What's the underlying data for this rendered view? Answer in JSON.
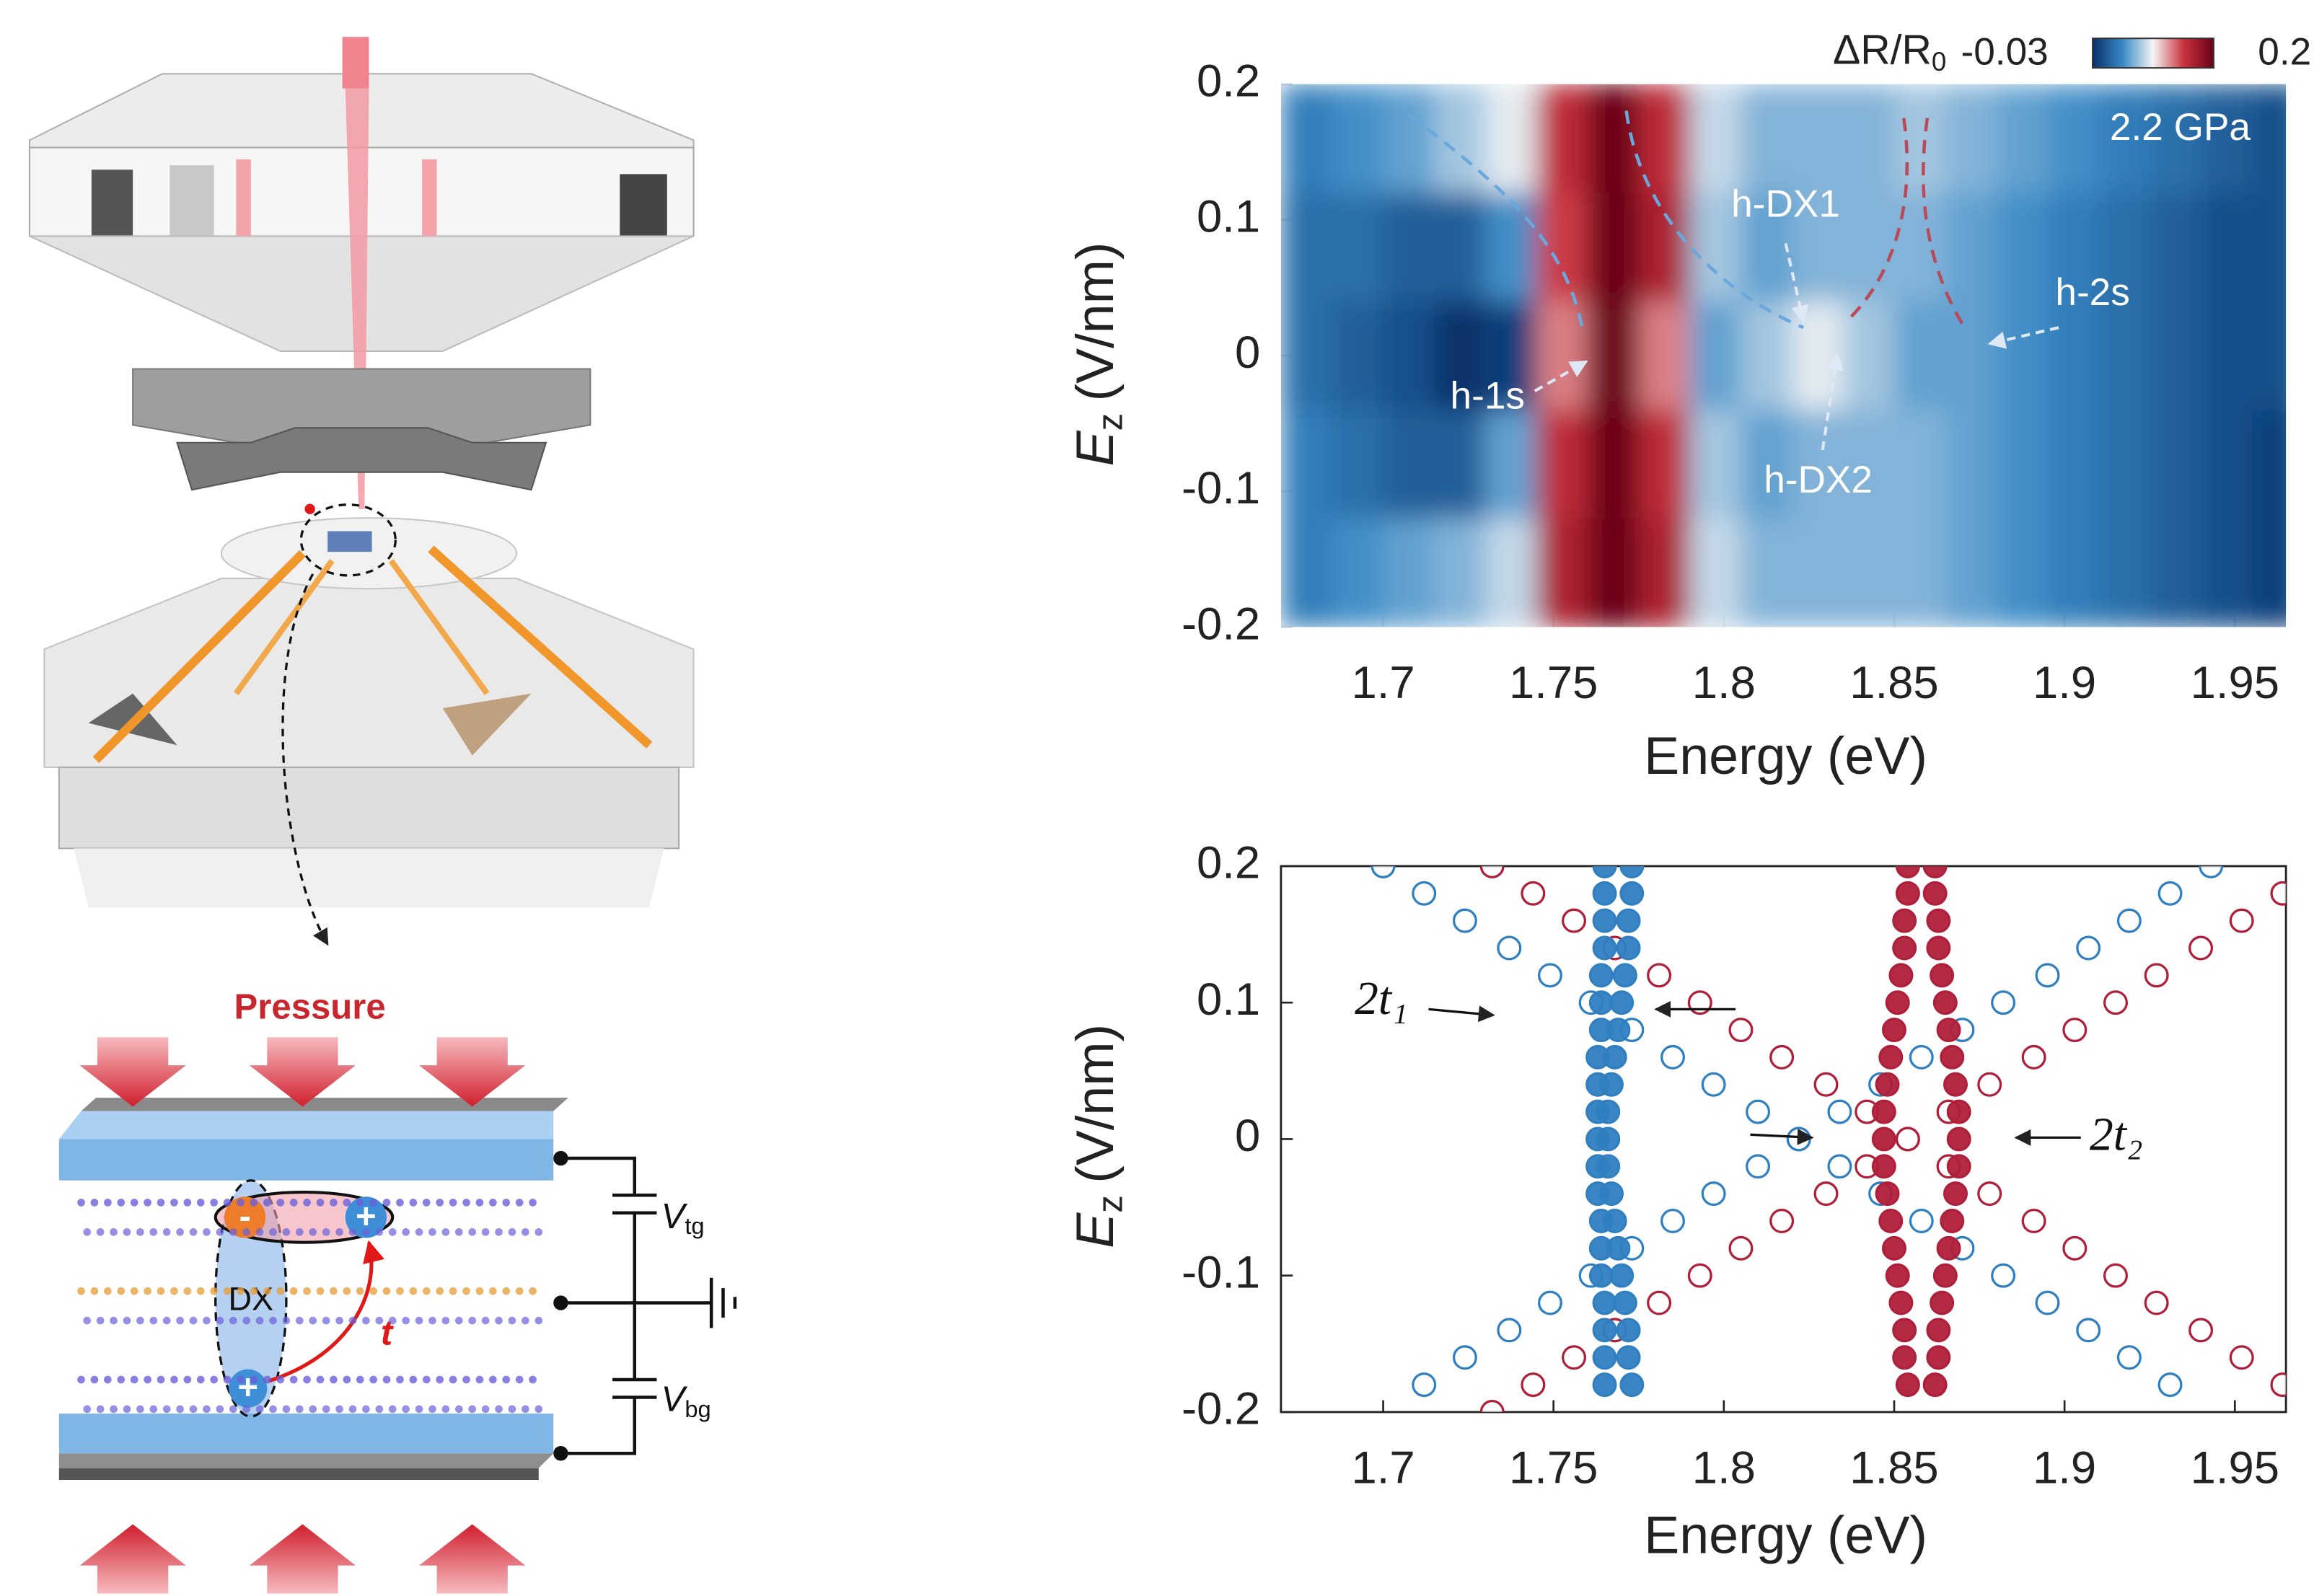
{
  "chart_data": [
    {
      "type": "heatmap",
      "xlabel": "Energy (eV)",
      "ylabel": "E",
      "ylabel_sub": "z",
      "ylabel_unit": "(V/nm)",
      "xlim": [
        1.67,
        1.965
      ],
      "ylim": [
        -0.2,
        0.2
      ],
      "xticks": [
        1.7,
        1.75,
        1.8,
        1.85,
        1.9,
        1.95
      ],
      "yticks": [
        -0.2,
        -0.1,
        0,
        0.1,
        0.2
      ],
      "colorbar_label": "ΔR/R",
      "colorbar_label_sub": "0",
      "clim": [
        -0.03,
        0.2
      ],
      "colorbar_ticks": [
        -0.03,
        0.2
      ],
      "colormap": [
        "#08306b",
        "#3a8ac6",
        "#f4f4f4",
        "#c9333c",
        "#6a0018"
      ],
      "annotations": [
        "2.2 GPa",
        "h-1s",
        "h-DX1",
        "h-DX2",
        "h-2s"
      ],
      "x_edges": [
        1.67,
        1.685,
        1.7,
        1.715,
        1.73,
        1.745,
        1.76,
        1.775,
        1.79,
        1.805,
        1.82,
        1.835,
        1.85,
        1.865,
        1.88,
        1.895,
        1.91,
        1.925,
        1.94,
        1.955,
        1.97
      ],
      "y_edges": [
        0.2,
        0.12,
        0.04,
        -0.04,
        -0.12,
        -0.2
      ],
      "z": [
        [
          0.02,
          0.03,
          0.04,
          0.06,
          0.08,
          0.15,
          0.2,
          0.15,
          0.07,
          0.05,
          0.05,
          0.05,
          0.06,
          0.05,
          0.04,
          0.03,
          0.02,
          0.01,
          0.0,
          -0.01
        ],
        [
          0.01,
          0.01,
          0.0,
          0.0,
          0.03,
          0.14,
          0.2,
          0.16,
          0.06,
          0.04,
          0.05,
          0.05,
          0.05,
          0.04,
          0.03,
          0.02,
          0.01,
          0.0,
          -0.01,
          -0.01
        ],
        [
          0.01,
          0.0,
          -0.01,
          -0.03,
          -0.02,
          0.12,
          0.2,
          0.12,
          0.04,
          0.06,
          0.08,
          0.06,
          0.04,
          0.04,
          0.03,
          0.02,
          0.01,
          0.0,
          -0.01,
          -0.01
        ],
        [
          0.02,
          0.01,
          0.0,
          0.0,
          0.04,
          0.15,
          0.2,
          0.15,
          0.06,
          0.04,
          0.05,
          0.05,
          0.05,
          0.04,
          0.03,
          0.02,
          0.01,
          0.0,
          -0.01,
          -0.02
        ],
        [
          0.02,
          0.03,
          0.04,
          0.05,
          0.07,
          0.16,
          0.2,
          0.16,
          0.07,
          0.05,
          0.05,
          0.05,
          0.05,
          0.04,
          0.03,
          0.02,
          0.01,
          0.0,
          -0.01,
          -0.02
        ]
      ]
    },
    {
      "type": "scatter",
      "xlabel": "Energy (eV)",
      "ylabel": "E",
      "ylabel_sub": "z",
      "ylabel_unit": "(V/nm)",
      "xlim": [
        1.67,
        1.965
      ],
      "ylim": [
        -0.2,
        0.2
      ],
      "xticks": [
        1.7,
        1.75,
        1.8,
        1.85,
        1.9,
        1.95
      ],
      "yticks": [
        -0.2,
        -0.1,
        0,
        0.1,
        0.2
      ],
      "annotations": [
        "2t₁",
        "2t₂"
      ],
      "series": [
        {
          "color": "#2f7fc1",
          "filled": false,
          "x": [
            1.7,
            1.712,
            1.724,
            1.737,
            1.749,
            1.761,
            1.773,
            1.785,
            1.797,
            1.81,
            1.822,
            1.834,
            1.846,
            1.858,
            1.87,
            1.882,
            1.895,
            1.907,
            1.919,
            1.931
          ],
          "y": [
            0.2,
            0.18,
            0.16,
            0.14,
            0.12,
            0.1,
            0.08,
            0.06,
            0.04,
            0.02,
            0,
            -0.02,
            -0.04,
            -0.06,
            -0.08,
            -0.1,
            -0.12,
            -0.14,
            -0.16,
            -0.18
          ]
        },
        {
          "color": "#2f7fc1",
          "filled": false,
          "x": [
            1.943,
            1.931,
            1.919,
            1.907,
            1.895,
            1.882,
            1.87,
            1.858,
            1.846,
            1.834,
            1.822,
            1.81,
            1.797,
            1.785,
            1.773,
            1.761,
            1.749,
            1.737,
            1.724,
            1.712
          ],
          "y": [
            0.2,
            0.18,
            0.16,
            0.14,
            0.12,
            0.1,
            0.08,
            0.06,
            0.04,
            0.02,
            0,
            -0.02,
            -0.04,
            -0.06,
            -0.08,
            -0.1,
            -0.12,
            -0.14,
            -0.16,
            -0.18
          ]
        },
        {
          "color": "#b01f3a",
          "filled": false,
          "x": [
            1.732,
            1.744,
            1.756,
            1.768,
            1.781,
            1.793,
            1.805,
            1.817,
            1.83,
            1.842,
            1.854,
            1.866,
            1.878,
            1.891,
            1.903,
            1.915,
            1.927,
            1.94,
            1.952,
            1.964
          ],
          "y": [
            0.2,
            0.18,
            0.16,
            0.14,
            0.12,
            0.1,
            0.08,
            0.06,
            0.04,
            0.02,
            0,
            -0.02,
            -0.04,
            -0.06,
            -0.08,
            -0.1,
            -0.12,
            -0.14,
            -0.16,
            -0.18
          ]
        },
        {
          "color": "#b01f3a",
          "filled": false,
          "x": [
            1.732,
            1.744,
            1.756,
            1.768,
            1.781,
            1.793,
            1.805,
            1.817,
            1.83,
            1.842,
            1.854,
            1.866,
            1.878,
            1.891,
            1.903,
            1.915,
            1.927,
            1.94,
            1.952,
            1.964
          ],
          "y": [
            -0.2,
            -0.18,
            -0.16,
            -0.14,
            -0.12,
            -0.1,
            -0.08,
            -0.06,
            -0.04,
            -0.02,
            0,
            0.02,
            0.04,
            0.06,
            0.08,
            0.1,
            0.12,
            0.14,
            0.16,
            0.18
          ]
        },
        {
          "color": "#2f7fc1",
          "filled": true,
          "x": [
            1.765,
            1.765,
            1.765,
            1.765,
            1.764,
            1.764,
            1.764,
            1.763,
            1.763,
            1.763,
            1.763,
            1.763,
            1.763,
            1.764,
            1.764,
            1.764,
            1.765,
            1.765,
            1.765,
            1.765
          ],
          "y": [
            0.2,
            0.18,
            0.16,
            0.14,
            0.12,
            0.1,
            0.08,
            0.06,
            0.04,
            0.02,
            0,
            -0.02,
            -0.04,
            -0.06,
            -0.08,
            -0.1,
            -0.12,
            -0.14,
            -0.16,
            -0.18
          ]
        },
        {
          "color": "#2f7fc1",
          "filled": true,
          "x": [
            1.773,
            1.773,
            1.772,
            1.772,
            1.771,
            1.77,
            1.769,
            1.768,
            1.767,
            1.766,
            1.766,
            1.766,
            1.767,
            1.768,
            1.769,
            1.77,
            1.771,
            1.772,
            1.772,
            1.773
          ],
          "y": [
            0.2,
            0.18,
            0.16,
            0.14,
            0.12,
            0.1,
            0.08,
            0.06,
            0.04,
            0.02,
            0,
            -0.02,
            -0.04,
            -0.06,
            -0.08,
            -0.1,
            -0.12,
            -0.14,
            -0.16,
            -0.18
          ]
        },
        {
          "color": "#b01f3a",
          "filled": true,
          "x": [
            1.854,
            1.854,
            1.853,
            1.853,
            1.852,
            1.851,
            1.85,
            1.849,
            1.848,
            1.847,
            1.847,
            1.847,
            1.848,
            1.849,
            1.85,
            1.851,
            1.852,
            1.853,
            1.853,
            1.854
          ],
          "y": [
            0.2,
            0.18,
            0.16,
            0.14,
            0.12,
            0.1,
            0.08,
            0.06,
            0.04,
            0.02,
            0,
            -0.02,
            -0.04,
            -0.06,
            -0.08,
            -0.1,
            -0.12,
            -0.14,
            -0.16,
            -0.18
          ]
        },
        {
          "color": "#b01f3a",
          "filled": true,
          "x": [
            1.862,
            1.862,
            1.863,
            1.863,
            1.864,
            1.865,
            1.866,
            1.867,
            1.868,
            1.869,
            1.869,
            1.869,
            1.868,
            1.867,
            1.866,
            1.865,
            1.864,
            1.863,
            1.863,
            1.862
          ],
          "y": [
            0.2,
            0.18,
            0.16,
            0.14,
            0.12,
            0.1,
            0.08,
            0.06,
            0.04,
            0.02,
            0,
            -0.02,
            -0.04,
            -0.06,
            -0.08,
            -0.1,
            -0.12,
            -0.14,
            -0.16,
            -0.18
          ]
        }
      ]
    }
  ],
  "illustration": {
    "pressure": "Pressure",
    "dx": "DX",
    "hopping": "t",
    "charges": [
      "-",
      "+",
      "+"
    ],
    "vtg": {
      "symbol": "V",
      "sub": "tg"
    },
    "vbg": {
      "symbol": "V",
      "sub": "bg"
    }
  }
}
